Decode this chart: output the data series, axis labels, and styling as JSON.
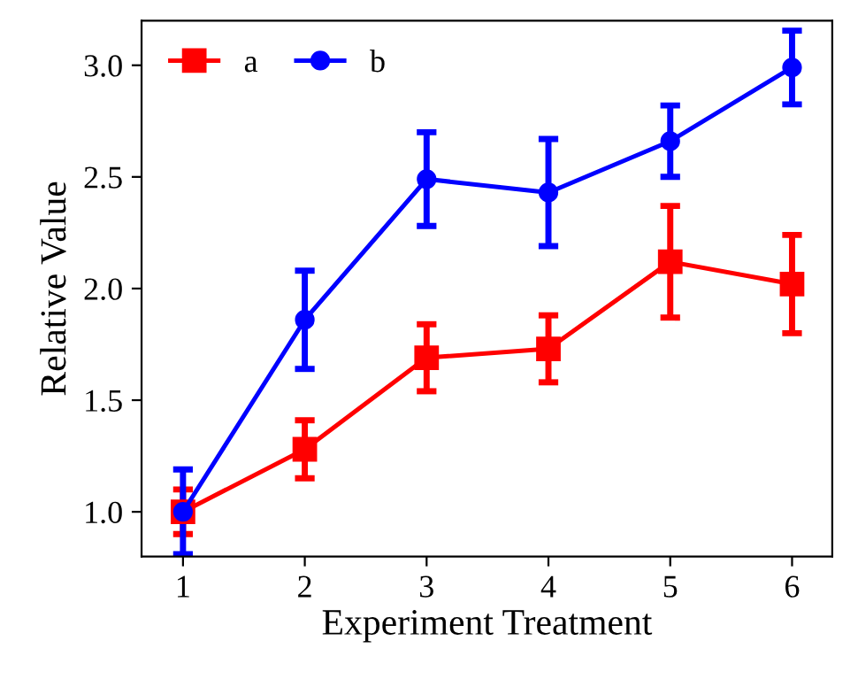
{
  "chart_data": {
    "type": "line",
    "xlabel": "Experiment Treatment",
    "ylabel": "Relative Value",
    "x": [
      1,
      2,
      3,
      4,
      5,
      6
    ],
    "series": [
      {
        "name": "a",
        "color": "#ff0000",
        "marker": "square",
        "values": [
          1.0,
          1.28,
          1.69,
          1.73,
          2.12,
          2.02
        ],
        "errors": [
          0.1,
          0.13,
          0.15,
          0.15,
          0.25,
          0.22
        ]
      },
      {
        "name": "b",
        "color": "#0000ff",
        "marker": "circle",
        "values": [
          1.0,
          1.86,
          2.49,
          2.43,
          2.66,
          2.99
        ],
        "errors": [
          0.19,
          0.22,
          0.21,
          0.24,
          0.16,
          0.165
        ]
      }
    ],
    "xlim": [
      0.66,
      6.33
    ],
    "xticks": [
      1,
      2,
      3,
      4,
      5,
      6
    ],
    "ylim": [
      0.8,
      3.2
    ],
    "yticks": [
      {
        "value": 1.0,
        "label": "1.0"
      },
      {
        "value": 1.5,
        "label": "1.5"
      },
      {
        "value": 2.0,
        "label": "2.0"
      },
      {
        "value": 2.5,
        "label": "2.5"
      },
      {
        "value": 3.0,
        "label": "3.0"
      }
    ],
    "grid": false,
    "legend": "top left",
    "line_style": "solid"
  }
}
